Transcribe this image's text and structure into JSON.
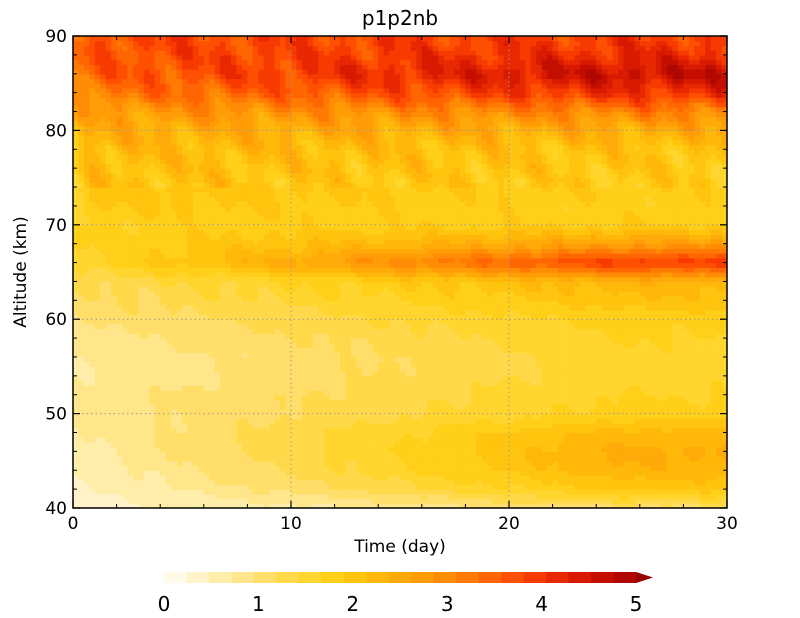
{
  "chart_data": {
    "type": "heatmap",
    "title": "p1p2nb",
    "xlabel": "Time (day)",
    "ylabel": "Altitude (km)",
    "xlim": [
      0,
      30
    ],
    "ylim": [
      40,
      90
    ],
    "x_ticks": [
      "0",
      "10",
      "20",
      "30"
    ],
    "y_ticks": [
      "40",
      "50",
      "60",
      "70",
      "80",
      "90"
    ],
    "grid": "dotted",
    "colorbar": {
      "placement": "bottom",
      "ticks": [
        "0",
        "1",
        "2",
        "3",
        "4",
        "5"
      ],
      "levels": [
        0,
        0.25,
        0.5,
        0.75,
        1,
        1.25,
        1.5,
        1.75,
        2,
        2.25,
        2.5,
        2.75,
        3,
        3.25,
        3.5,
        3.75,
        4,
        4.25,
        4.5,
        4.75,
        5
      ],
      "colors": [
        "#fffbe8",
        "#fff4c9",
        "#ffeeaa",
        "#ffe68a",
        "#ffdf6a",
        "#ffd94a",
        "#ffd52e",
        "#ffcf1a",
        "#ffc40e",
        "#ffb80a",
        "#ffaa08",
        "#ff9c06",
        "#ff8c04",
        "#ff7a03",
        "#ff6602",
        "#ff5002",
        "#f73a00",
        "#e82800",
        "#d81a00",
        "#c40f00",
        "#b00800",
        "#960500"
      ],
      "extend": "max"
    },
    "altitudes": [
      40,
      42,
      44,
      46,
      48,
      50,
      52,
      54,
      56,
      58,
      60,
      62,
      64,
      66,
      68,
      70,
      72,
      74,
      76,
      78,
      80,
      82,
      84,
      86,
      88,
      90
    ],
    "time_days": [
      0,
      1,
      2,
      3,
      4,
      5,
      6,
      7,
      8,
      9,
      10,
      11,
      12,
      13,
      14,
      15,
      16,
      17,
      18,
      19,
      20,
      21,
      22,
      23,
      24,
      25,
      26,
      27,
      28,
      29,
      30
    ],
    "profile_early": [
      0.1,
      0.2,
      0.3,
      0.4,
      0.5,
      0.6,
      0.6,
      0.5,
      0.5,
      0.6,
      0.8,
      0.9,
      1.0,
      1.4,
      1.5,
      1.6,
      1.8,
      1.9,
      2.0,
      2.1,
      2.3,
      2.6,
      3.1,
      3.4,
      3.6,
      3.7
    ],
    "profile_late": [
      0.9,
      1.8,
      2.2,
      2.3,
      2.1,
      1.6,
      1.5,
      1.4,
      1.4,
      1.5,
      1.6,
      1.9,
      2.2,
      3.9,
      2.6,
      1.7,
      1.6,
      1.7,
      1.8,
      1.9,
      2.3,
      3.0,
      4.0,
      4.6,
      4.1,
      3.8
    ]
  }
}
